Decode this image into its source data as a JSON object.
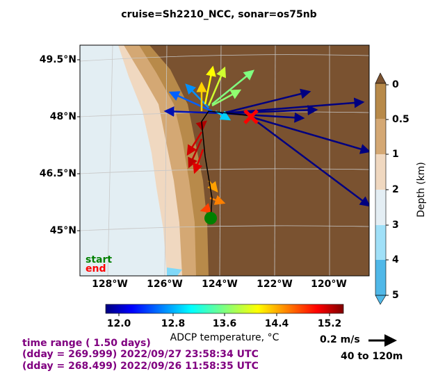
{
  "title": "cruise=Sh2210_NCC,   sonar=os75nb",
  "lat_labels": [
    "49.5°N",
    "48°N",
    "46.5°N",
    "45°N"
  ],
  "lon_labels": [
    "128°W",
    "126°W",
    "124°W",
    "122°W",
    "120°W"
  ],
  "legend": {
    "start": "start",
    "end": "end"
  },
  "depth_colorbar": {
    "label": "Depth (km)",
    "ticks": [
      "0",
      "0.5",
      "1",
      "2",
      "3",
      "4",
      "5"
    ]
  },
  "temperature_colorbar": {
    "label": "ADCP temperature, °C",
    "ticks": [
      "12.0",
      "12.8",
      "13.6",
      "14.4",
      "15.2"
    ]
  },
  "time_info": [
    "time range ( 1.50 days)",
    "(dday = 269.999) 2022/09/27 23:58:34 UTC",
    "(dday = 268.499) 2022/09/26 11:58:35 UTC"
  ],
  "scale": {
    "speed": "0.2 m/s",
    "depth_range": "40 to 120m"
  }
}
